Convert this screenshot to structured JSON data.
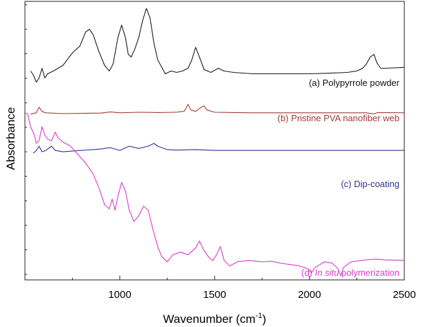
{
  "chart_data": {
    "type": "line",
    "xlabel": "Wavenumber (cm",
    "xlabel_sup": "-1",
    "xlabel_end": ")",
    "ylabel": "Absorbance",
    "xlim": [
      500,
      2500
    ],
    "ylim": [
      0,
      100
    ],
    "xticks": [
      1000,
      1500,
      2000,
      2500
    ],
    "grid": false,
    "series": [
      {
        "name": "(a) Polypyrrole powder",
        "label_parts": [
          "(a) Polypyrrole powder"
        ],
        "color": "#1a1a1a",
        "points": [
          [
            530,
            75
          ],
          [
            545,
            73.5
          ],
          [
            560,
            71
          ],
          [
            575,
            72.5
          ],
          [
            590,
            76
          ],
          [
            605,
            72.5
          ],
          [
            620,
            74
          ],
          [
            650,
            75
          ],
          [
            700,
            77
          ],
          [
            750,
            81.5
          ],
          [
            790,
            84
          ],
          [
            820,
            89
          ],
          [
            840,
            90
          ],
          [
            860,
            88
          ],
          [
            890,
            82
          ],
          [
            920,
            77
          ],
          [
            945,
            75
          ],
          [
            965,
            77.5
          ],
          [
            990,
            87
          ],
          [
            1010,
            91.5
          ],
          [
            1030,
            87
          ],
          [
            1045,
            81
          ],
          [
            1060,
            80
          ],
          [
            1080,
            83
          ],
          [
            1100,
            87
          ],
          [
            1120,
            93
          ],
          [
            1140,
            97.5
          ],
          [
            1160,
            94
          ],
          [
            1180,
            85
          ],
          [
            1200,
            79
          ],
          [
            1220,
            76.5
          ],
          [
            1240,
            74
          ],
          [
            1270,
            75
          ],
          [
            1300,
            74.5
          ],
          [
            1330,
            75
          ],
          [
            1360,
            76
          ],
          [
            1380,
            79
          ],
          [
            1400,
            83.5
          ],
          [
            1420,
            80
          ],
          [
            1445,
            75.5
          ],
          [
            1480,
            74.5
          ],
          [
            1520,
            76
          ],
          [
            1550,
            75
          ],
          [
            1600,
            74.5
          ],
          [
            1700,
            74
          ],
          [
            1800,
            74
          ],
          [
            1900,
            74
          ],
          [
            2000,
            74
          ],
          [
            2100,
            74.2
          ],
          [
            2200,
            74.5
          ],
          [
            2250,
            75
          ],
          [
            2280,
            76
          ],
          [
            2300,
            77.5
          ],
          [
            2320,
            80
          ],
          [
            2340,
            81
          ],
          [
            2355,
            78
          ],
          [
            2375,
            76
          ],
          [
            2400,
            76
          ],
          [
            2500,
            76.3
          ]
        ]
      },
      {
        "name": "(b) Pristine PVA nanofiber web",
        "label_parts": [
          "(b) Pristine PVA nanofiber web"
        ],
        "color": "#a33a3a",
        "points": [
          [
            530,
            59.5
          ],
          [
            560,
            60
          ],
          [
            575,
            62
          ],
          [
            590,
            60.5
          ],
          [
            610,
            60
          ],
          [
            700,
            59.7
          ],
          [
            800,
            59.8
          ],
          [
            900,
            59.9
          ],
          [
            950,
            60.3
          ],
          [
            1000,
            60
          ],
          [
            1100,
            60.2
          ],
          [
            1200,
            60.1
          ],
          [
            1300,
            60.2
          ],
          [
            1340,
            60.6
          ],
          [
            1360,
            63
          ],
          [
            1375,
            61
          ],
          [
            1400,
            60.5
          ],
          [
            1430,
            62
          ],
          [
            1445,
            62.5
          ],
          [
            1460,
            61
          ],
          [
            1500,
            60.2
          ],
          [
            1600,
            60.1
          ],
          [
            1700,
            60
          ],
          [
            1800,
            60
          ],
          [
            1900,
            60
          ],
          [
            2000,
            60
          ],
          [
            2100,
            60
          ],
          [
            2200,
            60
          ],
          [
            2300,
            60
          ],
          [
            2340,
            59.6
          ],
          [
            2360,
            60.1
          ],
          [
            2500,
            60
          ]
        ]
      },
      {
        "name": "(c) Dip-coating",
        "label_parts": [
          "(c) Dip-coating"
        ],
        "color": "#2e3192",
        "points": [
          [
            545,
            45.5
          ],
          [
            560,
            46.5
          ],
          [
            575,
            48
          ],
          [
            590,
            46
          ],
          [
            610,
            46.5
          ],
          [
            640,
            48
          ],
          [
            660,
            46.5
          ],
          [
            700,
            46
          ],
          [
            800,
            46.5
          ],
          [
            900,
            47
          ],
          [
            950,
            47.5
          ],
          [
            1000,
            46.5
          ],
          [
            1050,
            48
          ],
          [
            1100,
            47.2
          ],
          [
            1150,
            48
          ],
          [
            1180,
            49
          ],
          [
            1200,
            48
          ],
          [
            1250,
            46.8
          ],
          [
            1300,
            46.6
          ],
          [
            1400,
            46.8
          ],
          [
            1500,
            46.5
          ],
          [
            1600,
            46.5
          ],
          [
            1800,
            46.5
          ],
          [
            2000,
            46.5
          ],
          [
            2200,
            46.5
          ],
          [
            2500,
            46.5
          ]
        ]
      },
      {
        "name": "(d) In situ polymerization",
        "label_parts": [
          "(d) ",
          "In situ",
          " polymerization"
        ],
        "color": "#d63cd0",
        "points": [
          [
            500,
            60
          ],
          [
            515,
            59.5
          ],
          [
            530,
            55
          ],
          [
            550,
            52
          ],
          [
            560,
            49
          ],
          [
            575,
            50
          ],
          [
            590,
            55
          ],
          [
            605,
            52
          ],
          [
            620,
            50.5
          ],
          [
            640,
            50
          ],
          [
            660,
            53
          ],
          [
            675,
            51
          ],
          [
            700,
            49.5
          ],
          [
            740,
            48
          ],
          [
            780,
            45
          ],
          [
            820,
            42
          ],
          [
            860,
            38
          ],
          [
            890,
            33
          ],
          [
            920,
            27
          ],
          [
            945,
            25.5
          ],
          [
            960,
            29
          ],
          [
            975,
            25
          ],
          [
            990,
            30
          ],
          [
            1010,
            35
          ],
          [
            1030,
            32
          ],
          [
            1050,
            25
          ],
          [
            1075,
            21
          ],
          [
            1100,
            23
          ],
          [
            1125,
            26.5
          ],
          [
            1150,
            25
          ],
          [
            1175,
            18
          ],
          [
            1200,
            12
          ],
          [
            1220,
            8.5
          ],
          [
            1250,
            6.5
          ],
          [
            1280,
            9
          ],
          [
            1320,
            10
          ],
          [
            1360,
            9
          ],
          [
            1400,
            11.5
          ],
          [
            1420,
            14
          ],
          [
            1440,
            11
          ],
          [
            1470,
            8
          ],
          [
            1490,
            7
          ],
          [
            1510,
            9
          ],
          [
            1530,
            12
          ],
          [
            1550,
            7
          ],
          [
            1580,
            5
          ],
          [
            1620,
            6.5
          ],
          [
            1680,
            7
          ],
          [
            1750,
            6.5
          ],
          [
            1800,
            6.7
          ],
          [
            1850,
            6
          ],
          [
            1900,
            5.5
          ],
          [
            1950,
            5
          ],
          [
            1990,
            4
          ],
          [
            2010,
            2.5
          ],
          [
            2030,
            4.5
          ],
          [
            2080,
            6.5
          ],
          [
            2120,
            6
          ],
          [
            2150,
            4
          ],
          [
            2165,
            1.5
          ],
          [
            2180,
            4.5
          ],
          [
            2220,
            6.5
          ],
          [
            2300,
            7.2
          ],
          [
            2350,
            7.5
          ],
          [
            2400,
            7.2
          ],
          [
            2500,
            7
          ]
        ]
      }
    ]
  }
}
